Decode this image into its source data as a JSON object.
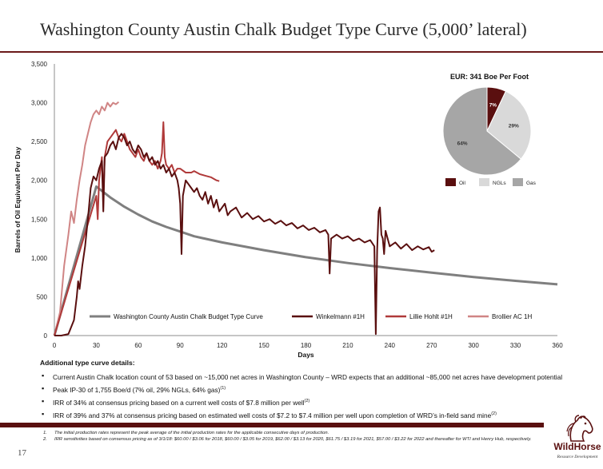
{
  "slide": {
    "title": "Washington County Austin Chalk Budget Type Curve (5,000’ lateral)",
    "page_number": "17",
    "colors": {
      "accent": "#6b1a1a",
      "footer_bar": "#5a1010"
    }
  },
  "chart_data": [
    {
      "type": "line",
      "title": "",
      "xlabel": "Days",
      "ylabel": "Barrels of Oil Equivalent Per Day",
      "xlim": [
        0,
        360
      ],
      "ylim": [
        0,
        3500
      ],
      "x_ticks": [
        "0",
        "30",
        "60",
        "90",
        "120",
        "150",
        "180",
        "210",
        "240",
        "270",
        "300",
        "330",
        "360"
      ],
      "y_ticks": [
        "0",
        "500",
        "1,000",
        "1,500",
        "2,000",
        "2,500",
        "3,000",
        "3,500"
      ],
      "grid": false,
      "legend_position": "bottom",
      "series": [
        {
          "name": "Washington County Austin Chalk Budget Type Curve",
          "color": "#7f7f7f",
          "points": [
            [
              0,
              0
            ],
            [
              30,
              1920
            ],
            [
              35,
              1850
            ],
            [
              40,
              1780
            ],
            [
              50,
              1660
            ],
            [
              60,
              1560
            ],
            [
              70,
              1470
            ],
            [
              80,
              1400
            ],
            [
              90,
              1340
            ],
            [
              100,
              1280
            ],
            [
              120,
              1200
            ],
            [
              150,
              1100
            ],
            [
              180,
              1010
            ],
            [
              210,
              935
            ],
            [
              240,
              870
            ],
            [
              270,
              810
            ],
            [
              300,
              755
            ],
            [
              330,
              705
            ],
            [
              360,
              660
            ]
          ]
        },
        {
          "name": "Winkelmann #1H",
          "color": "#5a0f0f",
          "points": [
            [
              0,
              0
            ],
            [
              5,
              0
            ],
            [
              10,
              20
            ],
            [
              14,
              200
            ],
            [
              16,
              500
            ],
            [
              17,
              700
            ],
            [
              18,
              600
            ],
            [
              20,
              900
            ],
            [
              22,
              1150
            ],
            [
              24,
              1500
            ],
            [
              26,
              1900
            ],
            [
              28,
              2050
            ],
            [
              30,
              2000
            ],
            [
              32,
              2150
            ],
            [
              34,
              2250
            ],
            [
              35,
              1600
            ],
            [
              36,
              2300
            ],
            [
              38,
              2350
            ],
            [
              40,
              2450
            ],
            [
              42,
              2500
            ],
            [
              44,
              2400
            ],
            [
              46,
              2550
            ],
            [
              48,
              2600
            ],
            [
              50,
              2550
            ],
            [
              52,
              2450
            ],
            [
              54,
              2500
            ],
            [
              56,
              2400
            ],
            [
              58,
              2350
            ],
            [
              60,
              2450
            ],
            [
              62,
              2400
            ],
            [
              64,
              2300
            ],
            [
              66,
              2350
            ],
            [
              68,
              2250
            ],
            [
              70,
              2300
            ],
            [
              72,
              2200
            ],
            [
              74,
              2250
            ],
            [
              76,
              2150
            ],
            [
              78,
              2200
            ],
            [
              80,
              2100
            ],
            [
              82,
              2150
            ],
            [
              84,
              2050
            ],
            [
              86,
              2100
            ],
            [
              88,
              2000
            ],
            [
              89,
              1900
            ],
            [
              90,
              1700
            ],
            [
              91,
              1050
            ],
            [
              92,
              1800
            ],
            [
              94,
              2000
            ],
            [
              96,
              1950
            ],
            [
              98,
              1900
            ],
            [
              100,
              1850
            ],
            [
              102,
              1900
            ],
            [
              104,
              1800
            ],
            [
              106,
              1750
            ],
            [
              108,
              1850
            ],
            [
              110,
              1700
            ],
            [
              112,
              1800
            ],
            [
              114,
              1650
            ],
            [
              116,
              1750
            ],
            [
              118,
              1600
            ],
            [
              120,
              1650
            ],
            [
              122,
              1700
            ],
            [
              124,
              1550
            ],
            [
              126,
              1600
            ],
            [
              130,
              1650
            ],
            [
              134,
              1520
            ],
            [
              138,
              1580
            ],
            [
              142,
              1500
            ],
            [
              146,
              1540
            ],
            [
              150,
              1470
            ],
            [
              154,
              1500
            ],
            [
              158,
              1440
            ],
            [
              162,
              1480
            ],
            [
              166,
              1420
            ],
            [
              170,
              1450
            ],
            [
              174,
              1380
            ],
            [
              178,
              1420
            ],
            [
              182,
              1360
            ],
            [
              186,
              1390
            ],
            [
              190,
              1330
            ],
            [
              194,
              1360
            ],
            [
              196,
              1300
            ],
            [
              197,
              800
            ],
            [
              198,
              1250
            ],
            [
              202,
              1300
            ],
            [
              206,
              1250
            ],
            [
              210,
              1280
            ],
            [
              214,
              1220
            ],
            [
              218,
              1250
            ],
            [
              222,
              1200
            ],
            [
              226,
              1230
            ],
            [
              229,
              1150
            ],
            [
              230,
              20
            ],
            [
              231,
              1100
            ],
            [
              232,
              1600
            ],
            [
              233,
              1650
            ],
            [
              234,
              1300
            ],
            [
              235,
              1250
            ],
            [
              236,
              1050
            ],
            [
              237,
              1350
            ],
            [
              240,
              1150
            ],
            [
              244,
              1200
            ],
            [
              248,
              1120
            ],
            [
              252,
              1180
            ],
            [
              256,
              1100
            ],
            [
              260,
              1150
            ],
            [
              264,
              1110
            ],
            [
              268,
              1140
            ],
            [
              270,
              1080
            ],
            [
              272,
              1100
            ]
          ]
        },
        {
          "name": "Lillie Hohlt #1H",
          "color": "#b03a3a",
          "points": [
            [
              0,
              0
            ],
            [
              30,
              1800
            ],
            [
              31,
              1500
            ],
            [
              32,
              2000
            ],
            [
              34,
              2300
            ],
            [
              35,
              1750
            ],
            [
              36,
              2300
            ],
            [
              38,
              2500
            ],
            [
              40,
              2550
            ],
            [
              42,
              2600
            ],
            [
              44,
              2650
            ],
            [
              46,
              2550
            ],
            [
              48,
              2500
            ],
            [
              50,
              2600
            ],
            [
              52,
              2500
            ],
            [
              54,
              2400
            ],
            [
              56,
              2350
            ],
            [
              58,
              2300
            ],
            [
              60,
              2400
            ],
            [
              62,
              2300
            ],
            [
              64,
              2250
            ],
            [
              66,
              2350
            ],
            [
              68,
              2250
            ],
            [
              70,
              2200
            ],
            [
              72,
              2250
            ],
            [
              74,
              2150
            ],
            [
              76,
              2250
            ],
            [
              77,
              2350
            ],
            [
              78,
              2750
            ],
            [
              79,
              2300
            ],
            [
              80,
              2200
            ],
            [
              82,
              2150
            ],
            [
              84,
              2200
            ],
            [
              86,
              2100
            ],
            [
              88,
              2150
            ],
            [
              90,
              2150
            ],
            [
              94,
              2100
            ],
            [
              98,
              2100
            ],
            [
              100,
              2120
            ],
            [
              104,
              2080
            ],
            [
              108,
              2060
            ],
            [
              112,
              2040
            ],
            [
              116,
              2000
            ],
            [
              118,
              1990
            ]
          ]
        },
        {
          "name": "Brollier AC 1H",
          "color": "#d08585",
          "points": [
            [
              0,
              0
            ],
            [
              4,
              300
            ],
            [
              7,
              900
            ],
            [
              10,
              1300
            ],
            [
              12,
              1600
            ],
            [
              14,
              1450
            ],
            [
              16,
              1750
            ],
            [
              18,
              2000
            ],
            [
              20,
              2200
            ],
            [
              22,
              2450
            ],
            [
              24,
              2600
            ],
            [
              26,
              2750
            ],
            [
              28,
              2850
            ],
            [
              30,
              2900
            ],
            [
              32,
              2850
            ],
            [
              34,
              2950
            ],
            [
              36,
              2900
            ],
            [
              38,
              3000
            ],
            [
              40,
              2950
            ],
            [
              42,
              3000
            ],
            [
              44,
              2980
            ],
            [
              46,
              3010
            ]
          ]
        }
      ]
    },
    {
      "type": "pie",
      "title": "EUR: 341 Boe Per Foot",
      "categories": [
        "Oil",
        "NGLs",
        "Gas"
      ],
      "values": [
        7,
        29,
        64
      ],
      "value_labels": [
        "7%",
        "29%",
        "64%"
      ],
      "colors": [
        "#5a0f0f",
        "#d9d9d9",
        "#a6a6a6"
      ],
      "legend_position": "bottom"
    }
  ],
  "details": {
    "heading": "Additional type curve details:",
    "bullets": [
      {
        "text": "Current Austin Chalk location count of 53 based on ~15,000 net acres in Washington County – WRD expects that an additional ~85,000 net acres have development potential",
        "sup": ""
      },
      {
        "text": "Peak IP-30 of 1,755 Boe/d (7% oil, 29% NGLs, 64% gas)",
        "sup": "(1)"
      },
      {
        "text": "IRR of 34% at consensus pricing based on a current well costs of $7.8 million per well",
        "sup": "(2)"
      },
      {
        "text": "IRR of 39% and 37% at consensus pricing based on estimated well costs of $7.2 to $7.4 million per well upon completion of WRD’s in-field sand mine",
        "sup": "(2)"
      }
    ]
  },
  "footnotes": [
    {
      "num": "1.",
      "text": "The initial production rates represent the peak average of the initial production rates for the applicable consecutive days of production."
    },
    {
      "num": "2.",
      "text": "IRR sensitivities based on consensus pricing as of 3/1/18: $60.00 / $3.06 for 2018, $60.00 / $3.05 for 2019, $62.00 / $3.13 for 2020, $61.75 / $3.19 for 2021, $57.00 / $3.22 for 2022 and thereafter for WTI and Henry Hub, respectively."
    }
  ],
  "logo": {
    "word": "WildHorse",
    "sub": "Resource Development",
    "icon": "horse-head-icon"
  }
}
